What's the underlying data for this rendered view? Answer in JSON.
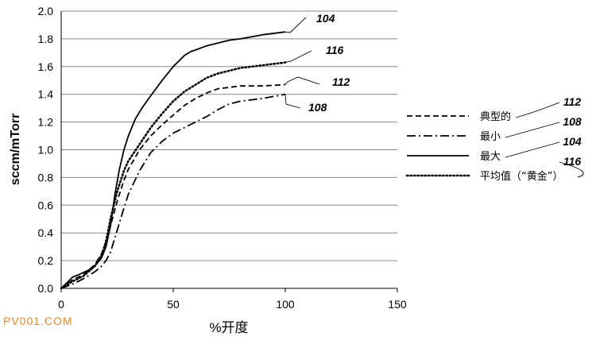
{
  "chart_data": {
    "type": "line",
    "xlabel": "%开度",
    "ylabel": "sccm/mTorr",
    "xlim": [
      0,
      150
    ],
    "ylim": [
      0,
      2.0
    ],
    "xticks": [
      0,
      50,
      100,
      150
    ],
    "yticks": [
      "0.0",
      "0.2",
      "0.4",
      "0.6",
      "0.8",
      "1.0",
      "1.2",
      "1.4",
      "1.6",
      "1.8",
      "2.0"
    ],
    "grid": "horizontal",
    "legend_position": "right",
    "series": [
      {
        "name": "典型的",
        "ref": "112",
        "style": "dashed",
        "x": [
          0,
          5,
          10,
          15,
          18,
          20,
          22,
          25,
          28,
          30,
          35,
          40,
          45,
          50,
          55,
          60,
          65,
          70,
          75,
          80,
          90,
          100
        ],
        "y": [
          0.0,
          0.06,
          0.1,
          0.17,
          0.25,
          0.33,
          0.45,
          0.63,
          0.78,
          0.86,
          1.0,
          1.1,
          1.18,
          1.25,
          1.32,
          1.37,
          1.41,
          1.44,
          1.45,
          1.46,
          1.46,
          1.47
        ]
      },
      {
        "name": "最小",
        "ref": "108",
        "style": "dashdot",
        "x": [
          0,
          5,
          10,
          15,
          18,
          20,
          22,
          25,
          28,
          30,
          35,
          40,
          45,
          50,
          55,
          60,
          65,
          70,
          75,
          80,
          90,
          100
        ],
        "y": [
          0.0,
          0.03,
          0.07,
          0.12,
          0.16,
          0.2,
          0.26,
          0.42,
          0.58,
          0.68,
          0.85,
          0.98,
          1.06,
          1.12,
          1.16,
          1.2,
          1.24,
          1.29,
          1.33,
          1.35,
          1.37,
          1.4
        ]
      },
      {
        "name": "最大",
        "ref": "104",
        "style": "solid",
        "x": [
          0,
          5,
          8,
          12,
          15,
          18,
          20,
          22,
          24,
          26,
          28,
          30,
          33,
          36,
          40,
          45,
          50,
          55,
          58,
          60,
          65,
          70,
          75,
          80,
          90,
          100
        ],
        "y": [
          0.0,
          0.08,
          0.1,
          0.13,
          0.16,
          0.22,
          0.3,
          0.45,
          0.68,
          0.86,
          1.0,
          1.1,
          1.22,
          1.3,
          1.39,
          1.5,
          1.6,
          1.68,
          1.71,
          1.72,
          1.75,
          1.77,
          1.79,
          1.8,
          1.83,
          1.85
        ]
      },
      {
        "name": "平均值（“黄金”）",
        "ref": "116",
        "style": "dotted",
        "x": [
          0,
          5,
          10,
          15,
          18,
          20,
          22,
          25,
          28,
          30,
          35,
          40,
          45,
          50,
          55,
          60,
          65,
          70,
          75,
          80,
          90,
          100
        ],
        "y": [
          0.0,
          0.05,
          0.09,
          0.16,
          0.24,
          0.34,
          0.5,
          0.7,
          0.85,
          0.92,
          1.04,
          1.16,
          1.26,
          1.35,
          1.42,
          1.47,
          1.52,
          1.55,
          1.57,
          1.59,
          1.61,
          1.63
        ]
      }
    ]
  },
  "watermark": "PV001.COM"
}
